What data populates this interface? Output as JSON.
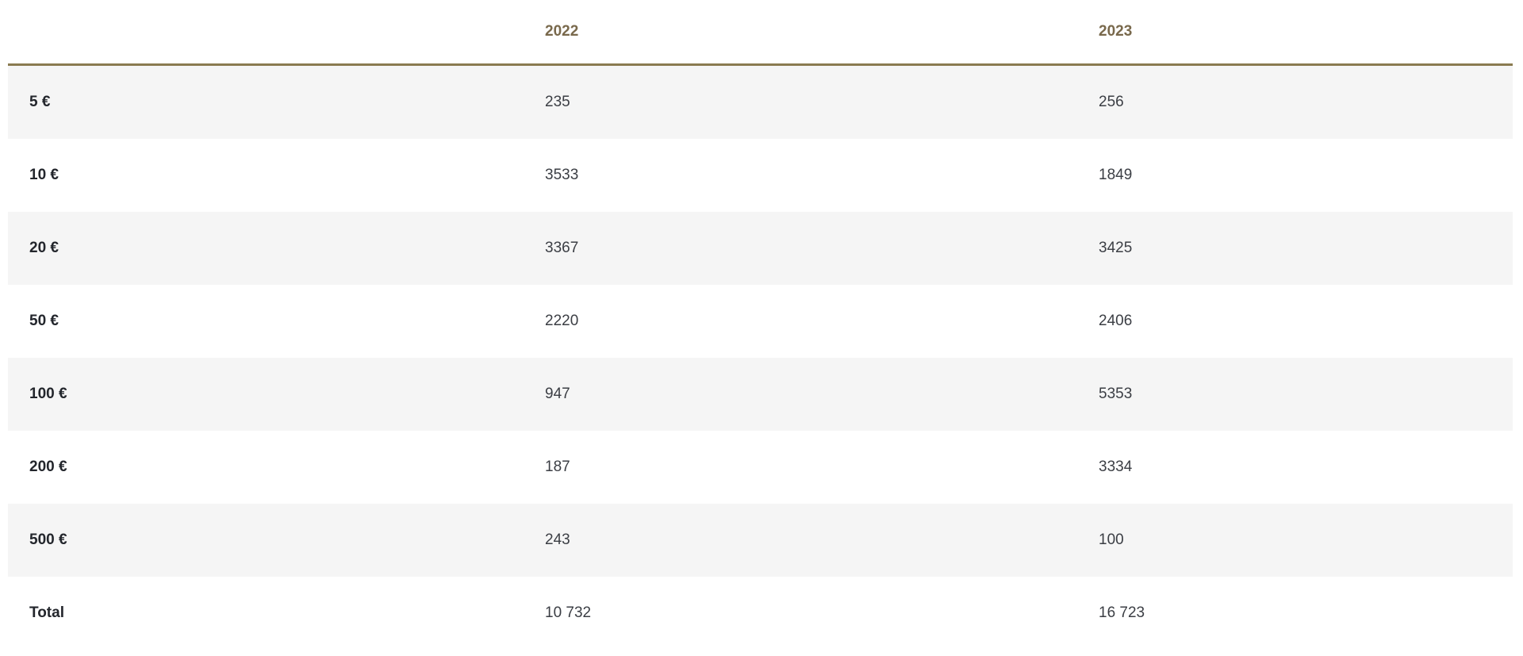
{
  "table": {
    "corner_label": "",
    "columns": [
      {
        "label": "2022"
      },
      {
        "label": "2023"
      }
    ],
    "rows": [
      {
        "label": "5 €",
        "v2022": "235",
        "v2023": "256"
      },
      {
        "label": "10 €",
        "v2022": "3533",
        "v2023": "1849"
      },
      {
        "label": "20 €",
        "v2022": "3367",
        "v2023": "3425"
      },
      {
        "label": "50 €",
        "v2022": "2220",
        "v2023": "2406"
      },
      {
        "label": "100 €",
        "v2022": "947",
        "v2023": "5353"
      },
      {
        "label": "200 €",
        "v2022": "187",
        "v2023": "3334"
      },
      {
        "label": "500 €",
        "v2022": "243",
        "v2023": "100"
      },
      {
        "label": "Total",
        "v2022": "10 732",
        "v2023": "16 723"
      }
    ]
  },
  "chart_data": {
    "type": "table",
    "categories": [
      "5 €",
      "10 €",
      "20 €",
      "50 €",
      "100 €",
      "200 €",
      "500 €",
      "Total"
    ],
    "series": [
      {
        "name": "2022",
        "values": [
          235,
          3533,
          3367,
          2220,
          947,
          187,
          243,
          10732
        ]
      },
      {
        "name": "2023",
        "values": [
          256,
          1849,
          3425,
          2406,
          5353,
          3334,
          100,
          16723
        ]
      }
    ],
    "title": "",
    "layout": {
      "striped_rows": true,
      "header_row_background": "none",
      "value_columns": 2
    }
  },
  "colors": {
    "stripe": "#f5f5f5",
    "rule": "#8a7b50",
    "header_text": "#79694c",
    "label_text": "#23262c",
    "value_text": "#3b3e44",
    "page_bg": "#ffffff"
  }
}
